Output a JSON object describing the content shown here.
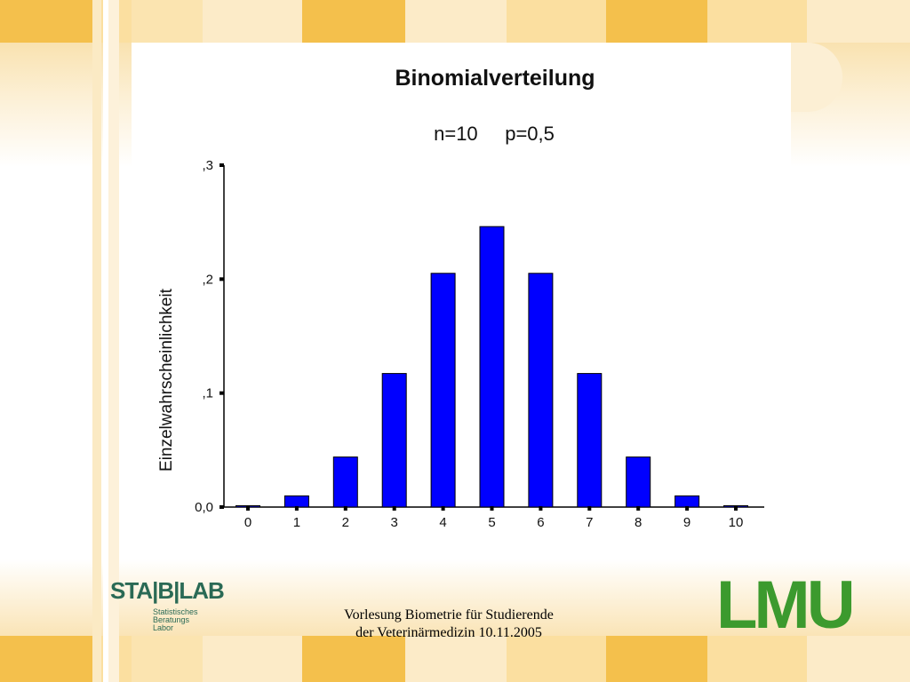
{
  "slide": {
    "footer_line1": "Vorlesung Biometrie für Studierende",
    "footer_line2": "der Veterinärmedizin 10.11.2005",
    "logo_left": {
      "main": "STA|B|LAB",
      "sub1": "Statistisches",
      "sub2": "Beratungs",
      "sub3": "Labor"
    },
    "logo_right": "LMU",
    "colors": {
      "bar": "#0000ff",
      "tile_dark": "#f4c04c",
      "tile_light": "#fbdfa0",
      "logo_green": "#3c9a2e",
      "stablab_green": "#2a6a55"
    }
  },
  "chart_data": {
    "type": "bar",
    "title": "Binomialverteilung",
    "subtitle": "n=10     p=0,5",
    "xlabel": "",
    "ylabel": "Einzelwahrscheinlichkeit",
    "categories": [
      "0",
      "1",
      "2",
      "3",
      "4",
      "5",
      "6",
      "7",
      "8",
      "9",
      "10"
    ],
    "values": [
      0.001,
      0.0098,
      0.0439,
      0.1172,
      0.2051,
      0.2461,
      0.2051,
      0.1172,
      0.0439,
      0.0098,
      0.001
    ],
    "ylim": [
      0,
      0.3
    ],
    "yticks": [
      0,
      0.1,
      0.2,
      0.3
    ],
    "ytick_labels": [
      "0,0",
      ",1",
      ",2",
      ",3"
    ],
    "grid": false,
    "legend": "none"
  }
}
